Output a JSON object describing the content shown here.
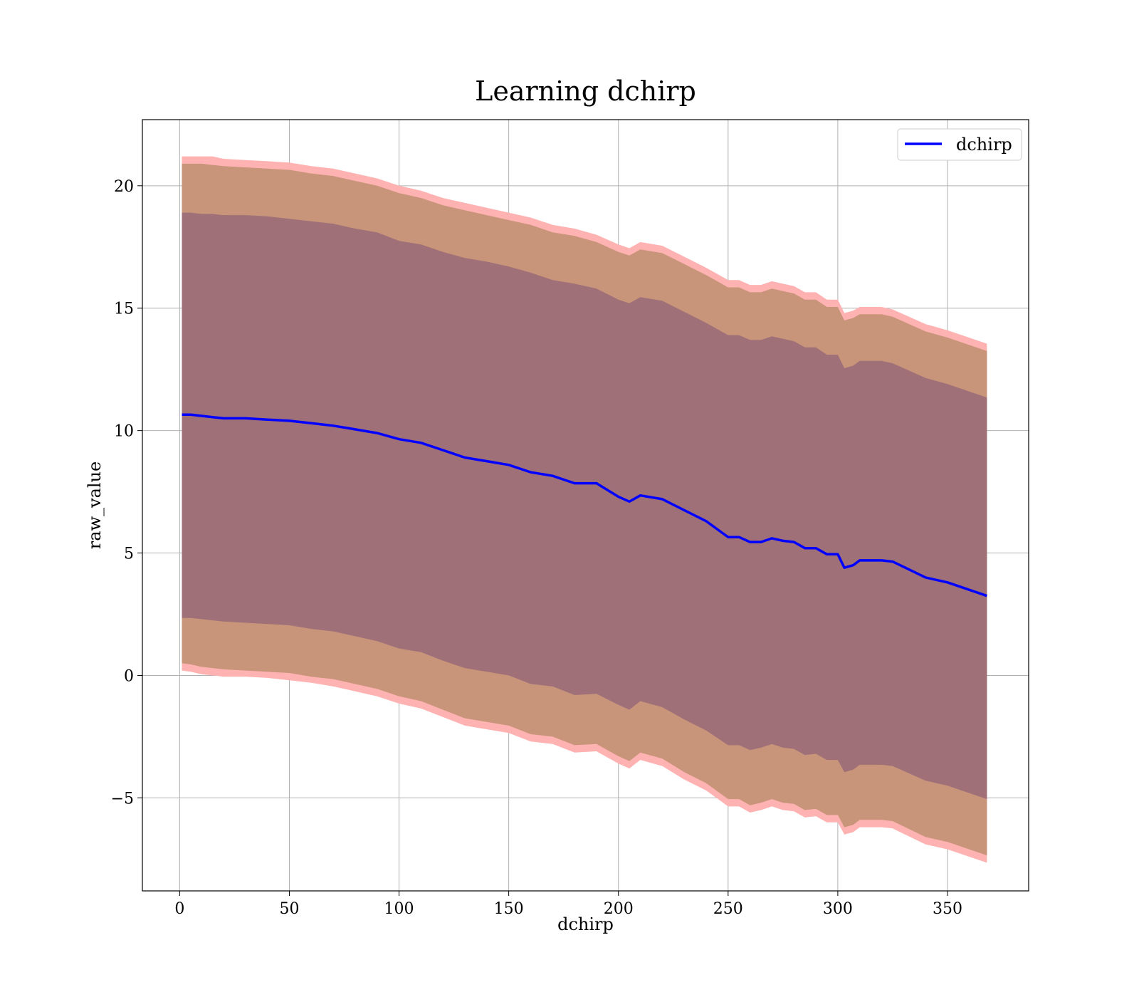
{
  "chart_data": {
    "type": "area",
    "title": "Learning dchirp",
    "xlabel": "dchirp",
    "ylabel": "raw_value",
    "xlim": [
      -17,
      387
    ],
    "ylim": [
      -8.8,
      22.7
    ],
    "xticks": [
      0,
      50,
      100,
      150,
      200,
      250,
      300,
      350
    ],
    "yticks": [
      -5,
      0,
      5,
      10,
      15,
      20
    ],
    "ytick_labels": [
      "−5",
      "0",
      "5",
      "10",
      "15",
      "20"
    ],
    "grid": true,
    "legend": {
      "placement": "top-right",
      "entries": [
        "dchirp"
      ]
    },
    "colors": {
      "line": "#0000ff",
      "band_outer": "#ffb2b2",
      "band_mid": "#c8957a",
      "band_inner": "#a07078",
      "background": "#ffffff"
    },
    "x": [
      1,
      5,
      10,
      15,
      20,
      30,
      40,
      50,
      60,
      70,
      80,
      90,
      100,
      110,
      120,
      130,
      140,
      150,
      160,
      170,
      180,
      190,
      200,
      205,
      210,
      220,
      230,
      240,
      250,
      255,
      260,
      265,
      270,
      275,
      280,
      285,
      290,
      295,
      300,
      303,
      307,
      310,
      320,
      325,
      340,
      350,
      368
    ],
    "series": [
      {
        "name": "dchirp",
        "values": [
          10.65,
          10.65,
          10.6,
          10.55,
          10.5,
          10.5,
          10.45,
          10.4,
          10.3,
          10.2,
          10.05,
          9.9,
          9.65,
          9.5,
          9.2,
          8.9,
          8.75,
          8.6,
          8.3,
          8.15,
          7.85,
          7.85,
          7.3,
          7.1,
          7.35,
          7.2,
          6.75,
          6.3,
          5.65,
          5.65,
          5.45,
          5.45,
          5.6,
          5.5,
          5.45,
          5.2,
          5.2,
          4.95,
          4.95,
          4.4,
          4.5,
          4.7,
          4.7,
          4.65,
          4.0,
          3.8,
          3.25
        ]
      }
    ],
    "bands": [
      {
        "lower": [
          0.2,
          0.15,
          0.05,
          0.0,
          -0.05,
          -0.05,
          -0.1,
          -0.2,
          -0.3,
          -0.45,
          -0.65,
          -0.85,
          -1.15,
          -1.35,
          -1.7,
          -2.05,
          -2.2,
          -2.35,
          -2.7,
          -2.8,
          -3.15,
          -3.1,
          -3.6,
          -3.8,
          -3.45,
          -3.7,
          -4.25,
          -4.7,
          -5.35,
          -5.35,
          -5.6,
          -5.5,
          -5.35,
          -5.5,
          -5.55,
          -5.8,
          -5.75,
          -6.0,
          -6.0,
          -6.5,
          -6.4,
          -6.2,
          -6.2,
          -6.25,
          -6.9,
          -7.1,
          -7.65
        ],
        "upper": [
          21.2,
          21.2,
          21.2,
          21.2,
          21.1,
          21.05,
          21.0,
          20.95,
          20.8,
          20.7,
          20.5,
          20.3,
          20.0,
          19.8,
          19.5,
          19.3,
          19.1,
          18.9,
          18.7,
          18.4,
          18.25,
          18.0,
          17.6,
          17.45,
          17.7,
          17.55,
          17.1,
          16.65,
          16.15,
          16.15,
          15.95,
          15.95,
          16.1,
          16.0,
          15.9,
          15.65,
          15.65,
          15.35,
          15.35,
          14.8,
          14.9,
          15.05,
          15.05,
          14.95,
          14.35,
          14.1,
          13.55
        ]
      },
      {
        "lower": [
          0.5,
          0.45,
          0.35,
          0.3,
          0.25,
          0.2,
          0.15,
          0.1,
          -0.05,
          -0.15,
          -0.35,
          -0.55,
          -0.85,
          -1.05,
          -1.4,
          -1.75,
          -1.9,
          -2.05,
          -2.4,
          -2.5,
          -2.85,
          -2.8,
          -3.3,
          -3.5,
          -3.15,
          -3.4,
          -3.95,
          -4.4,
          -5.05,
          -5.05,
          -5.3,
          -5.2,
          -5.05,
          -5.2,
          -5.25,
          -5.5,
          -5.45,
          -5.7,
          -5.7,
          -6.2,
          -6.1,
          -5.9,
          -5.9,
          -5.95,
          -6.6,
          -6.8,
          -7.35
        ],
        "upper": [
          20.9,
          20.9,
          20.9,
          20.85,
          20.8,
          20.75,
          20.7,
          20.65,
          20.5,
          20.4,
          20.2,
          20.0,
          19.7,
          19.5,
          19.2,
          19.0,
          18.8,
          18.6,
          18.4,
          18.1,
          17.95,
          17.7,
          17.3,
          17.15,
          17.4,
          17.25,
          16.8,
          16.35,
          15.85,
          15.85,
          15.65,
          15.65,
          15.8,
          15.7,
          15.6,
          15.35,
          15.35,
          15.05,
          15.05,
          14.5,
          14.6,
          14.75,
          14.75,
          14.65,
          14.05,
          13.8,
          13.25
        ]
      },
      {
        "lower": [
          2.35,
          2.35,
          2.3,
          2.25,
          2.2,
          2.15,
          2.1,
          2.05,
          1.9,
          1.8,
          1.6,
          1.4,
          1.1,
          0.95,
          0.6,
          0.3,
          0.15,
          0.0,
          -0.35,
          -0.45,
          -0.8,
          -0.75,
          -1.2,
          -1.4,
          -1.05,
          -1.3,
          -1.8,
          -2.25,
          -2.85,
          -2.85,
          -3.05,
          -2.95,
          -2.8,
          -2.95,
          -3.0,
          -3.25,
          -3.2,
          -3.45,
          -3.45,
          -3.95,
          -3.85,
          -3.65,
          -3.65,
          -3.7,
          -4.3,
          -4.5,
          -5.05
        ],
        "upper": [
          18.9,
          18.9,
          18.85,
          18.85,
          18.8,
          18.8,
          18.75,
          18.65,
          18.55,
          18.45,
          18.25,
          18.1,
          17.75,
          17.6,
          17.3,
          17.05,
          16.9,
          16.7,
          16.45,
          16.15,
          16.0,
          15.8,
          15.35,
          15.2,
          15.45,
          15.3,
          14.85,
          14.4,
          13.9,
          13.9,
          13.7,
          13.7,
          13.85,
          13.75,
          13.65,
          13.4,
          13.4,
          13.1,
          13.1,
          12.55,
          12.65,
          12.85,
          12.85,
          12.75,
          12.15,
          11.9,
          11.35
        ]
      }
    ]
  }
}
